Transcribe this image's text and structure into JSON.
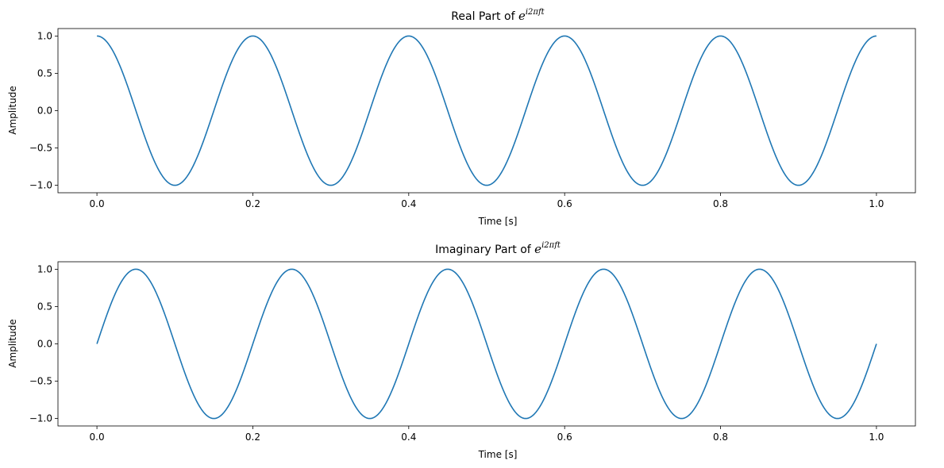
{
  "chart_data": [
    {
      "type": "line",
      "title_prefix": "Real Part of ",
      "title_base": "e",
      "title_superscript": "i2πft",
      "xlabel": "Time [s]",
      "ylabel": "Amplitude",
      "xlim": [
        -0.05,
        1.05
      ],
      "ylim": [
        -1.1,
        1.1
      ],
      "xticks": [
        0.0,
        0.2,
        0.4,
        0.6,
        0.8,
        1.0
      ],
      "xtick_labels": [
        "0.0",
        "0.2",
        "0.4",
        "0.6",
        "0.8",
        "1.0"
      ],
      "yticks": [
        -1.0,
        -0.5,
        0.0,
        0.5,
        1.0
      ],
      "ytick_labels": [
        "−1.0",
        "−0.5",
        "0.0",
        "0.5",
        "1.0"
      ],
      "grid": false,
      "series": [
        {
          "function": "cos(2*pi*f*t)",
          "frequency_hz": 5,
          "t_range": [
            0,
            1
          ],
          "color": "#1f77b4"
        }
      ]
    },
    {
      "type": "line",
      "title_prefix": "Imaginary Part of ",
      "title_base": "e",
      "title_superscript": "i2πft",
      "xlabel": "Time [s]",
      "ylabel": "Amplitude",
      "xlim": [
        -0.05,
        1.05
      ],
      "ylim": [
        -1.1,
        1.1
      ],
      "xticks": [
        0.0,
        0.2,
        0.4,
        0.6,
        0.8,
        1.0
      ],
      "xtick_labels": [
        "0.0",
        "0.2",
        "0.4",
        "0.6",
        "0.8",
        "1.0"
      ],
      "yticks": [
        -1.0,
        -0.5,
        0.0,
        0.5,
        1.0
      ],
      "ytick_labels": [
        "−1.0",
        "−0.5",
        "0.0",
        "0.5",
        "1.0"
      ],
      "grid": false,
      "series": [
        {
          "function": "sin(2*pi*f*t)",
          "frequency_hz": 5,
          "t_range": [
            0,
            1
          ],
          "color": "#1f77b4"
        }
      ]
    }
  ]
}
